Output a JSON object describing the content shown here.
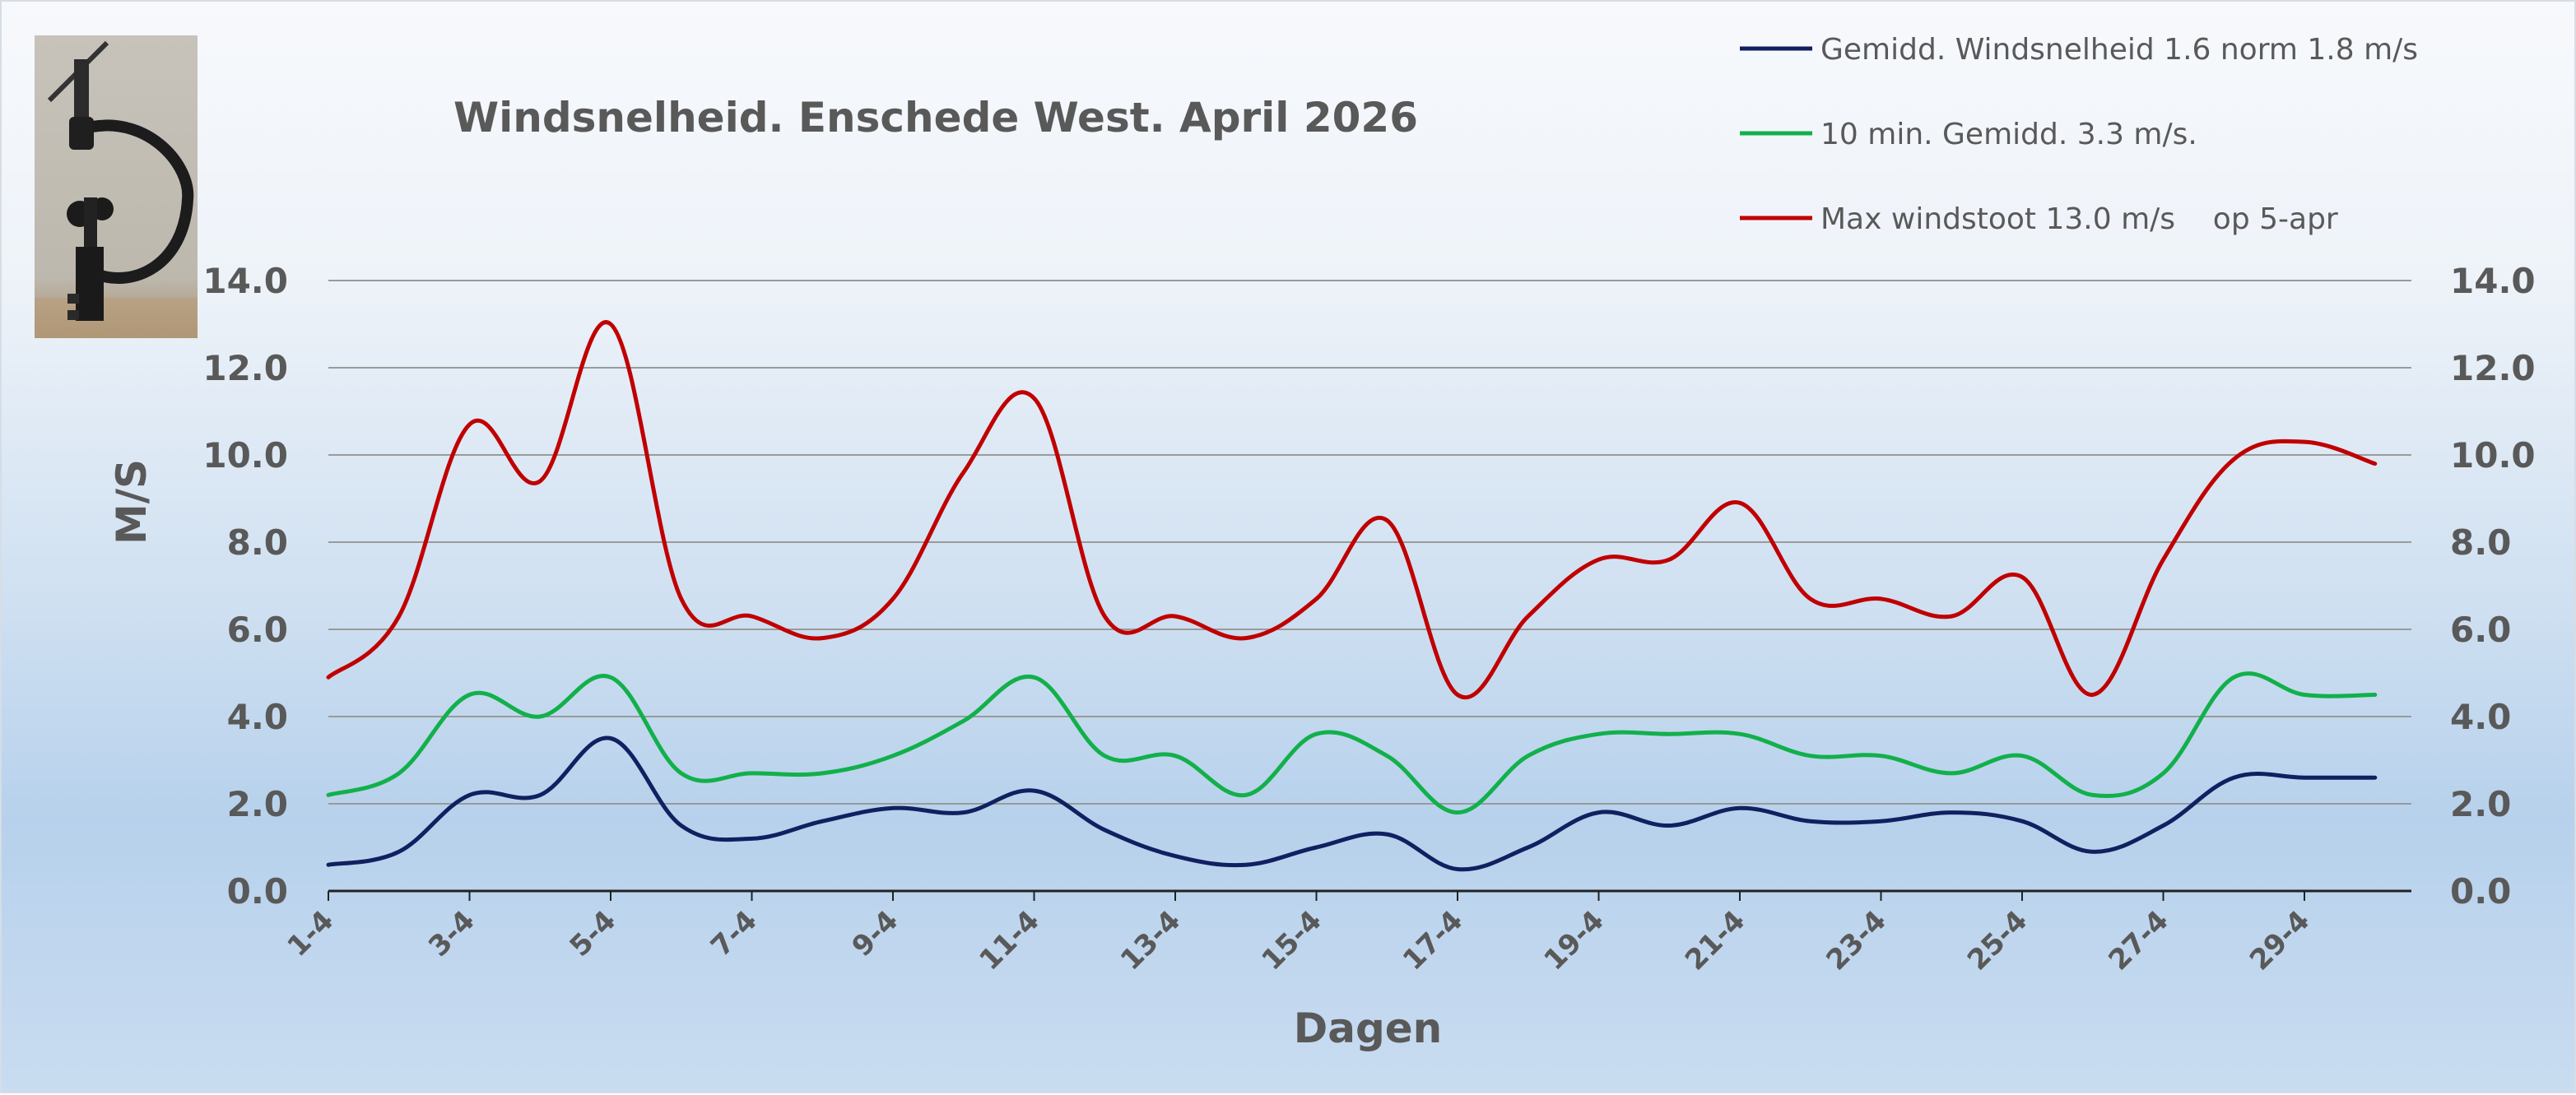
{
  "chart_data": {
    "type": "line",
    "title": "Windsnelheid. Enschede West. April 2026",
    "xlabel": "Dagen",
    "ylabel": "M/S",
    "ylim": [
      0,
      14
    ],
    "yticks": [
      "0.0",
      "2.0",
      "4.0",
      "6.0",
      "8.0",
      "10.0",
      "12.0",
      "14.0"
    ],
    "grid": true,
    "legend_position": "top-right",
    "x": [
      "1-4",
      "2-4",
      "3-4",
      "4-4",
      "5-4",
      "6-4",
      "7-4",
      "8-4",
      "9-4",
      "10-4",
      "11-4",
      "12-4",
      "13-4",
      "14-4",
      "15-4",
      "16-4",
      "17-4",
      "18-4",
      "19-4",
      "20-4",
      "21-4",
      "22-4",
      "23-4",
      "24-4",
      "25-4",
      "26-4",
      "27-4",
      "28-4",
      "29-4",
      "30-4"
    ],
    "xtick_labels": [
      "1-4",
      "3-4",
      "5-4",
      "7-4",
      "9-4",
      "11-4",
      "13-4",
      "15-4",
      "17-4",
      "19-4",
      "21-4",
      "23-4",
      "25-4",
      "27-4",
      "29-4"
    ],
    "series": [
      {
        "name": "Gemidd. Windsnelheid 1.6 norm 1.8 m/s",
        "color": "#102060",
        "values": [
          0.6,
          0.9,
          2.2,
          2.2,
          3.5,
          1.5,
          1.2,
          1.6,
          1.9,
          1.8,
          2.3,
          1.4,
          0.8,
          0.6,
          1.0,
          1.3,
          0.5,
          1.0,
          1.8,
          1.5,
          1.9,
          1.6,
          1.6,
          1.8,
          1.6,
          0.9,
          1.5,
          2.6,
          2.6,
          2.6
        ]
      },
      {
        "name": "10 min. Gemidd. 3.3 m/s.",
        "color": "#12b04b",
        "values": [
          2.2,
          2.7,
          4.5,
          4.0,
          4.9,
          2.7,
          2.7,
          2.7,
          3.1,
          3.9,
          4.9,
          3.1,
          3.1,
          2.2,
          3.6,
          3.1,
          1.8,
          3.1,
          3.6,
          3.6,
          3.6,
          3.1,
          3.1,
          2.7,
          3.1,
          2.2,
          2.7,
          4.9,
          4.5,
          4.5
        ]
      },
      {
        "name": "Max windstoot 13.0 m/s    op 5-apr",
        "color": "#c00000",
        "values": [
          4.9,
          6.3,
          10.7,
          9.4,
          13.0,
          6.7,
          6.3,
          5.8,
          6.7,
          9.6,
          11.3,
          6.3,
          6.3,
          5.8,
          6.7,
          8.5,
          4.5,
          6.3,
          7.6,
          7.6,
          8.9,
          6.7,
          6.7,
          6.3,
          7.2,
          4.5,
          7.6,
          9.9,
          10.3,
          9.8
        ]
      }
    ]
  }
}
